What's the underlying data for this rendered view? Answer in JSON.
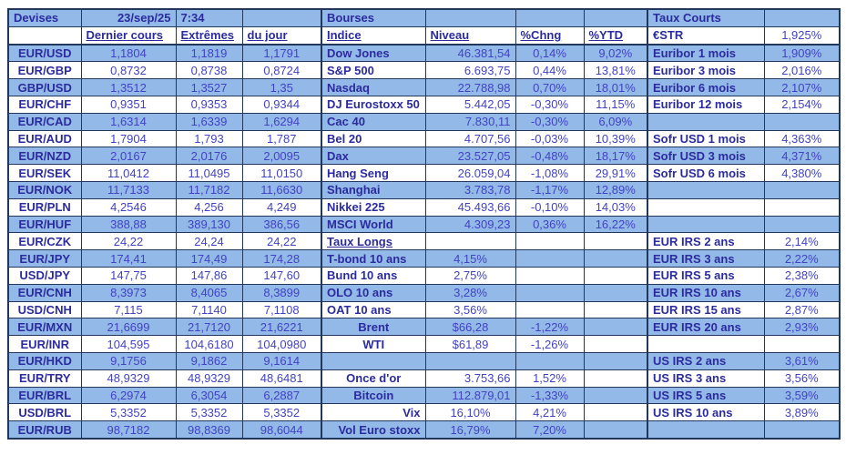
{
  "grid": {
    "title": "Devises / Bourses / Taux Courts market sheet",
    "rows": [
      {
        "cells": [
          {
            "t": "Devises",
            "a": "left"
          },
          {
            "t": "23/sep/25",
            "s": "l",
            "a": "right"
          },
          {
            "t": "7:34",
            "s": "l",
            "a": "left"
          },
          null,
          {
            "t": "Bourses"
          },
          null,
          null,
          null,
          {
            "t": "Taux Courts"
          },
          null
        ]
      },
      {
        "cells": [
          null,
          {
            "t": "Dernier cours",
            "s": "lu",
            "a": "left"
          },
          {
            "t": "Extrêmes",
            "s": "lu",
            "a": "left"
          },
          {
            "t": "du jour",
            "s": "lu",
            "a": "left"
          },
          {
            "t": "Indice",
            "s": "lu"
          },
          {
            "t": "Niveau",
            "s": "lu",
            "a": "left"
          },
          {
            "t": "%Chng",
            "s": "lu",
            "a": "left"
          },
          {
            "t": "%YTD",
            "s": "lu",
            "a": "left"
          },
          {
            "t": "€STR"
          },
          {
            "t": "1,925%"
          }
        ]
      },
      {
        "cells": [
          {
            "t": "EUR/USD"
          },
          {
            "t": "1,1804"
          },
          {
            "t": "1,1819"
          },
          {
            "t": "1,1791"
          },
          {
            "t": "Dow Jones"
          },
          {
            "t": "46.381,54"
          },
          {
            "t": "0,14%"
          },
          {
            "t": "9,02%"
          },
          {
            "t": "Euribor 1 mois"
          },
          {
            "t": "1,909%"
          }
        ]
      },
      {
        "cells": [
          {
            "t": "EUR/GBP"
          },
          {
            "t": "0,8732"
          },
          {
            "t": "0,8738"
          },
          {
            "t": "0,8724"
          },
          {
            "t": "S&P 500"
          },
          {
            "t": "6.693,75"
          },
          {
            "t": "0,44%"
          },
          {
            "t": "13,81%"
          },
          {
            "t": "Euribor 3 mois"
          },
          {
            "t": "2,016%"
          }
        ]
      },
      {
        "cells": [
          {
            "t": "GBP/USD"
          },
          {
            "t": "1,3512"
          },
          {
            "t": "1,3527"
          },
          {
            "t": "1,35"
          },
          {
            "t": "Nasdaq"
          },
          {
            "t": "22.788,98"
          },
          {
            "t": "0,70%"
          },
          {
            "t": "18,01%"
          },
          {
            "t": "Euribor 6 mois"
          },
          {
            "t": "2,107%"
          }
        ]
      },
      {
        "cells": [
          {
            "t": "EUR/CHF"
          },
          {
            "t": "0,9351"
          },
          {
            "t": "0,9353"
          },
          {
            "t": "0,9344"
          },
          {
            "t": "DJ Eurostoxx 50"
          },
          {
            "t": "5.442,05"
          },
          {
            "t": "-0,30%"
          },
          {
            "t": "11,15%"
          },
          {
            "t": "Euribor 12 mois"
          },
          {
            "t": "2,154%"
          }
        ]
      },
      {
        "cells": [
          {
            "t": "EUR/CAD"
          },
          {
            "t": "1,6314"
          },
          {
            "t": "1,6339"
          },
          {
            "t": "1,6294"
          },
          {
            "t": "Cac 40"
          },
          {
            "t": "7.830,11"
          },
          {
            "t": "-0,30%"
          },
          {
            "t": "6,09%"
          },
          null,
          null
        ]
      },
      {
        "cells": [
          {
            "t": "EUR/AUD"
          },
          {
            "t": "1,7904"
          },
          {
            "t": "1,793"
          },
          {
            "t": "1,787"
          },
          {
            "t": "Bel 20"
          },
          {
            "t": "4.707,56"
          },
          {
            "t": "-0,03%"
          },
          {
            "t": "10,39%"
          },
          {
            "t": "Sofr USD 1 mois"
          },
          {
            "t": "4,363%"
          }
        ]
      },
      {
        "cells": [
          {
            "t": "EUR/NZD"
          },
          {
            "t": "2,0167"
          },
          {
            "t": "2,0176"
          },
          {
            "t": "2,0095"
          },
          {
            "t": "Dax"
          },
          {
            "t": "23.527,05"
          },
          {
            "t": "-0,48%"
          },
          {
            "t": "18,17%"
          },
          {
            "t": "Sofr USD 3 mois"
          },
          {
            "t": "4,371%"
          }
        ]
      },
      {
        "cells": [
          {
            "t": "EUR/SEK"
          },
          {
            "t": "11,0412"
          },
          {
            "t": "11,0495"
          },
          {
            "t": "11,0150"
          },
          {
            "t": "Hang Seng"
          },
          {
            "t": "26.059,04"
          },
          {
            "t": "-1,08%"
          },
          {
            "t": "29,91%"
          },
          {
            "t": "Sofr USD 6 mois"
          },
          {
            "t": "4,380%"
          }
        ]
      },
      {
        "cells": [
          {
            "t": "EUR/NOK"
          },
          {
            "t": "11,7133"
          },
          {
            "t": "11,7182"
          },
          {
            "t": "11,6630"
          },
          {
            "t": "Shanghai"
          },
          {
            "t": "3.783,78"
          },
          {
            "t": "-1,17%"
          },
          {
            "t": "12,89%"
          },
          null,
          null
        ]
      },
      {
        "cells": [
          {
            "t": "EUR/PLN"
          },
          {
            "t": "4,2546"
          },
          {
            "t": "4,256"
          },
          {
            "t": "4,249"
          },
          {
            "t": "Nikkei 225"
          },
          {
            "t": "45.493,66"
          },
          {
            "t": "-0,10%"
          },
          {
            "t": "14,03%"
          },
          null,
          null
        ]
      },
      {
        "cells": [
          {
            "t": "EUR/HUF"
          },
          {
            "t": "388,88"
          },
          {
            "t": "389,130"
          },
          {
            "t": "386,56"
          },
          {
            "t": "MSCI World"
          },
          {
            "t": "4.309,23"
          },
          {
            "t": "0,36%"
          },
          {
            "t": "16,22%"
          },
          null,
          null
        ]
      },
      {
        "cells": [
          {
            "t": "EUR/CZK"
          },
          {
            "t": "24,22"
          },
          {
            "t": "24,24"
          },
          {
            "t": "24,22"
          },
          {
            "t": "Taux Longs",
            "s": "lu"
          },
          null,
          null,
          null,
          {
            "t": "EUR IRS 2 ans"
          },
          {
            "t": "2,14%"
          }
        ]
      },
      {
        "cells": [
          {
            "t": "EUR/JPY"
          },
          {
            "t": "174,41"
          },
          {
            "t": "174,49"
          },
          {
            "t": "174,28"
          },
          {
            "t": "T-bond 10 ans"
          },
          {
            "t": "4,15%",
            "a": "center"
          },
          null,
          null,
          {
            "t": "EUR IRS 3 ans"
          },
          {
            "t": "2,22%"
          }
        ]
      },
      {
        "cells": [
          {
            "t": "USD/JPY"
          },
          {
            "t": "147,75"
          },
          {
            "t": "147,86"
          },
          {
            "t": "147,60"
          },
          {
            "t": "Bund 10 ans"
          },
          {
            "t": "2,75%",
            "a": "center"
          },
          null,
          null,
          {
            "t": "EUR IRS 5 ans"
          },
          {
            "t": "2,38%"
          }
        ]
      },
      {
        "cells": [
          {
            "t": "EUR/CNH"
          },
          {
            "t": "8,3973"
          },
          {
            "t": "8,4065"
          },
          {
            "t": "8,3899"
          },
          {
            "t": "OLO 10 ans"
          },
          {
            "t": "3,28%",
            "a": "center"
          },
          null,
          null,
          {
            "t": "EUR IRS 10 ans"
          },
          {
            "t": "2,67%"
          }
        ]
      },
      {
        "cells": [
          {
            "t": "USD/CNH"
          },
          {
            "t": "7,115"
          },
          {
            "t": "7,1140"
          },
          {
            "t": "7,1108"
          },
          {
            "t": "OAT 10 ans"
          },
          {
            "t": "3,56%",
            "a": "center"
          },
          null,
          null,
          {
            "t": "EUR IRS 15 ans"
          },
          {
            "t": "2,87%"
          }
        ]
      },
      {
        "cells": [
          {
            "t": "EUR/MXN"
          },
          {
            "t": "21,6699"
          },
          {
            "t": "21,7120"
          },
          {
            "t": "21,6221"
          },
          {
            "t": "Brent",
            "a": "center"
          },
          {
            "t": "$66,28",
            "a": "center"
          },
          {
            "t": "-1,22%"
          },
          null,
          {
            "t": "EUR IRS 20 ans"
          },
          {
            "t": "2,93%"
          }
        ]
      },
      {
        "cells": [
          {
            "t": "EUR/INR"
          },
          {
            "t": "104,595"
          },
          {
            "t": "104,6180"
          },
          {
            "t": "104,0980"
          },
          {
            "t": "WTI",
            "a": "center"
          },
          {
            "t": "$61,89",
            "a": "center"
          },
          {
            "t": "-1,26%"
          },
          null,
          null,
          null
        ]
      },
      {
        "cells": [
          {
            "t": "EUR/HKD"
          },
          {
            "t": "9,1756"
          },
          {
            "t": "9,1862"
          },
          {
            "t": "9,1614"
          },
          null,
          null,
          null,
          null,
          {
            "t": "US IRS 2 ans"
          },
          {
            "t": "3,61%"
          }
        ]
      },
      {
        "cells": [
          {
            "t": "EUR/TRY"
          },
          {
            "t": "48,9329"
          },
          {
            "t": "48,9329"
          },
          {
            "t": "48,6481"
          },
          {
            "t": "Once d'or",
            "a": "center"
          },
          {
            "t": "3.753,66"
          },
          {
            "t": "1,52%"
          },
          null,
          {
            "t": "US IRS 3 ans"
          },
          {
            "t": "3,56%"
          }
        ]
      },
      {
        "cells": [
          {
            "t": "EUR/BRL"
          },
          {
            "t": "6,2974"
          },
          {
            "t": "6,3054"
          },
          {
            "t": "6,2887"
          },
          {
            "t": "Bitcoin",
            "a": "center"
          },
          {
            "t": "112.879,01"
          },
          {
            "t": "-1,33%"
          },
          null,
          {
            "t": "US IRS 5 ans"
          },
          {
            "t": "3,59%"
          }
        ]
      },
      {
        "cells": [
          {
            "t": "USD/BRL"
          },
          {
            "t": "5,3352"
          },
          {
            "t": "5,3352"
          },
          {
            "t": "5,3352"
          },
          {
            "t": "Vix",
            "a": "right"
          },
          {
            "t": "16,10%",
            "a": "center"
          },
          {
            "t": "4,21%"
          },
          null,
          {
            "t": "US IRS 10 ans"
          },
          {
            "t": "3,89%"
          }
        ]
      },
      {
        "cells": [
          {
            "t": "EUR/RUB"
          },
          {
            "t": "98,7182"
          },
          {
            "t": "98,8369"
          },
          {
            "t": "98,6044"
          },
          {
            "t": "Vol Euro stoxx",
            "a": "right"
          },
          {
            "t": "16,79%",
            "a": "center"
          },
          {
            "t": "7,20%"
          },
          null,
          null,
          null
        ]
      }
    ],
    "colors": {
      "row_fill_blue": "#93b9e8",
      "row_fill_white": "#ffffff",
      "label_text": "#2b2b9e",
      "value_text": "#4242c4",
      "border": "#21375c"
    }
  }
}
